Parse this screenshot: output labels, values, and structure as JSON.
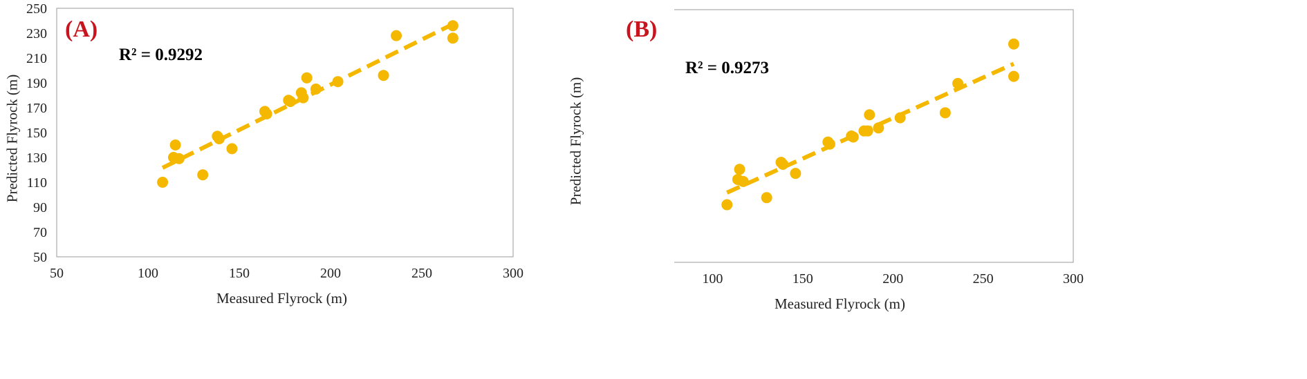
{
  "chart_data": [
    {
      "type": "scatter",
      "panel_label": "(A)",
      "r2_text": "R² = 0.9292",
      "xlabel": "Measured Flyrock  (m)",
      "ylabel": "Predicted Flyrock  (m)",
      "xlim": [
        50,
        300
      ],
      "ylim": [
        50,
        250
      ],
      "xticks": [
        50,
        100,
        150,
        200,
        250,
        300
      ],
      "yticks": [
        50,
        70,
        90,
        110,
        130,
        150,
        170,
        190,
        210,
        230,
        250
      ],
      "trendline": {
        "style": "dashed",
        "x_start": 108,
        "x_end": 267
      },
      "grid": false,
      "colors": {
        "points": "#f5b800",
        "trendline": "#f5b800",
        "panel_label": "#c8141e"
      },
      "series": [
        {
          "points": [
            [
              108,
              110
            ],
            [
              114,
              130
            ],
            [
              115,
              140
            ],
            [
              117,
              129
            ],
            [
              130,
              116
            ],
            [
              138,
              147
            ],
            [
              139,
              145
            ],
            [
              146,
              137
            ],
            [
              164,
              167
            ],
            [
              165,
              165
            ],
            [
              177,
              176
            ],
            [
              178,
              175
            ],
            [
              184,
              182
            ],
            [
              185,
              178
            ],
            [
              187,
              194
            ],
            [
              192,
              185
            ],
            [
              204,
              191
            ],
            [
              229,
              196
            ],
            [
              236,
              228
            ],
            [
              267,
              236
            ],
            [
              267,
              226
            ]
          ]
        }
      ]
    },
    {
      "type": "scatter",
      "panel_label": "(B)",
      "r2_text": "R² = 0.9273",
      "xlabel": "Measured Flyrock  (m)",
      "ylabel": "Predicted Flyrock  (m)",
      "xlim": [
        50,
        300
      ],
      "ylim": [
        50,
        300
      ],
      "xticks": [
        50,
        100,
        150,
        200,
        250,
        300
      ],
      "yticks": [
        50,
        100,
        150,
        200,
        250,
        300
      ],
      "trendline": {
        "style": "dashed",
        "x_start": 108,
        "x_end": 267
      },
      "grid": false,
      "colors": {
        "points": "#f5b800",
        "trendline": "#f5b800",
        "panel_label": "#c8141e"
      },
      "series": [
        {
          "points": [
            [
              108,
              107
            ],
            [
              114,
              132
            ],
            [
              115,
              142
            ],
            [
              117,
              130
            ],
            [
              130,
              114
            ],
            [
              138,
              149
            ],
            [
              139,
              147
            ],
            [
              146,
              138
            ],
            [
              164,
              169
            ],
            [
              165,
              167
            ],
            [
              177,
              175
            ],
            [
              178,
              174
            ],
            [
              184,
              180
            ],
            [
              186,
              180
            ],
            [
              187,
              196
            ],
            [
              192,
              183
            ],
            [
              204,
              193
            ],
            [
              229,
              198
            ],
            [
              236,
              227
            ],
            [
              267,
              266
            ],
            [
              267,
              234
            ]
          ]
        }
      ]
    }
  ]
}
